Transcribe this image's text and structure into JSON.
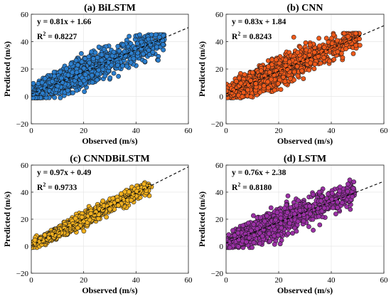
{
  "chart_data": [
    {
      "type": "scatter",
      "title": "(a) BiLSTM",
      "xlabel": "Observed (m/s)",
      "ylabel": "Predicted (m/s)",
      "xlim": [
        0,
        60
      ],
      "ylim": [
        -20,
        60
      ],
      "xticks": [
        "0",
        "20",
        "40",
        "60"
      ],
      "yticks": [
        "−20",
        "0",
        "20",
        "40",
        "60"
      ],
      "grid": true,
      "color": "#2b7fcf",
      "fit": {
        "slope": 0.81,
        "intercept": 1.66
      },
      "equation": "y = 0.81x + 1.66",
      "r2_label": "R",
      "r2_sup": "2",
      "r2_value": " = 0.8227",
      "series": [
        {
          "x_range": [
            0,
            51
          ],
          "y_range": [
            -1,
            45
          ],
          "n": 1400,
          "spread": 5.4
        }
      ]
    },
    {
      "type": "scatter",
      "title": "(b) CNN",
      "xlabel": "Observed (m/s)",
      "ylabel": "Predicted (m/s)",
      "xlim": [
        0,
        60
      ],
      "ylim": [
        -20,
        60
      ],
      "xticks": [
        "0",
        "20",
        "40",
        "60"
      ],
      "yticks": [
        "−20",
        "0",
        "20",
        "40",
        "60"
      ],
      "grid": true,
      "color": "#f05a1a",
      "fit": {
        "slope": 0.83,
        "intercept": 1.84
      },
      "equation": "y = 0.83x + 1.84",
      "r2_label": "R",
      "r2_sup": "2",
      "r2_value": " = 0.8243",
      "series": [
        {
          "x_range": [
            0,
            51
          ],
          "y_range": [
            -1,
            46
          ],
          "n": 1400,
          "spread": 5.3
        }
      ]
    },
    {
      "type": "scatter",
      "title": "(c) CNNDBiLSTM",
      "xlabel": "Observed (m/s)",
      "ylabel": "Predicted (m/s)",
      "xlim": [
        0,
        60
      ],
      "ylim": [
        -20,
        60
      ],
      "xticks": [
        "0",
        "20",
        "40",
        "60"
      ],
      "yticks": [
        "−20",
        "0",
        "20",
        "40",
        "60"
      ],
      "grid": true,
      "color": "#f2b01e",
      "fit": {
        "slope": 0.97,
        "intercept": 0.49
      },
      "equation": "y = 0.97x + 0.49",
      "r2_label": "R",
      "r2_sup": "2",
      "r2_value": " = 0.9733",
      "series": [
        {
          "x_range": [
            0,
            46
          ],
          "y_range": [
            -1,
            47
          ],
          "n": 1400,
          "spread": 2.6
        }
      ]
    },
    {
      "type": "scatter",
      "title": "(d) LSTM",
      "xlabel": "Observed (m/s)",
      "ylabel": "Predicted (m/s)",
      "xlim": [
        0,
        60
      ],
      "ylim": [
        -20,
        60
      ],
      "xticks": [
        "0",
        "20",
        "40",
        "60"
      ],
      "yticks": [
        "−20",
        "0",
        "20",
        "40",
        "60"
      ],
      "grid": true,
      "color": "#9b30a6",
      "fit": {
        "slope": 0.76,
        "intercept": 2.38
      },
      "equation": "y = 0.76x + 2.38",
      "r2_label": "R",
      "r2_sup": "2",
      "r2_value": " = 0.8180",
      "series": [
        {
          "x_range": [
            0,
            49
          ],
          "y_range": [
            -1,
            49
          ],
          "n": 1400,
          "spread": 5.5
        }
      ]
    }
  ]
}
